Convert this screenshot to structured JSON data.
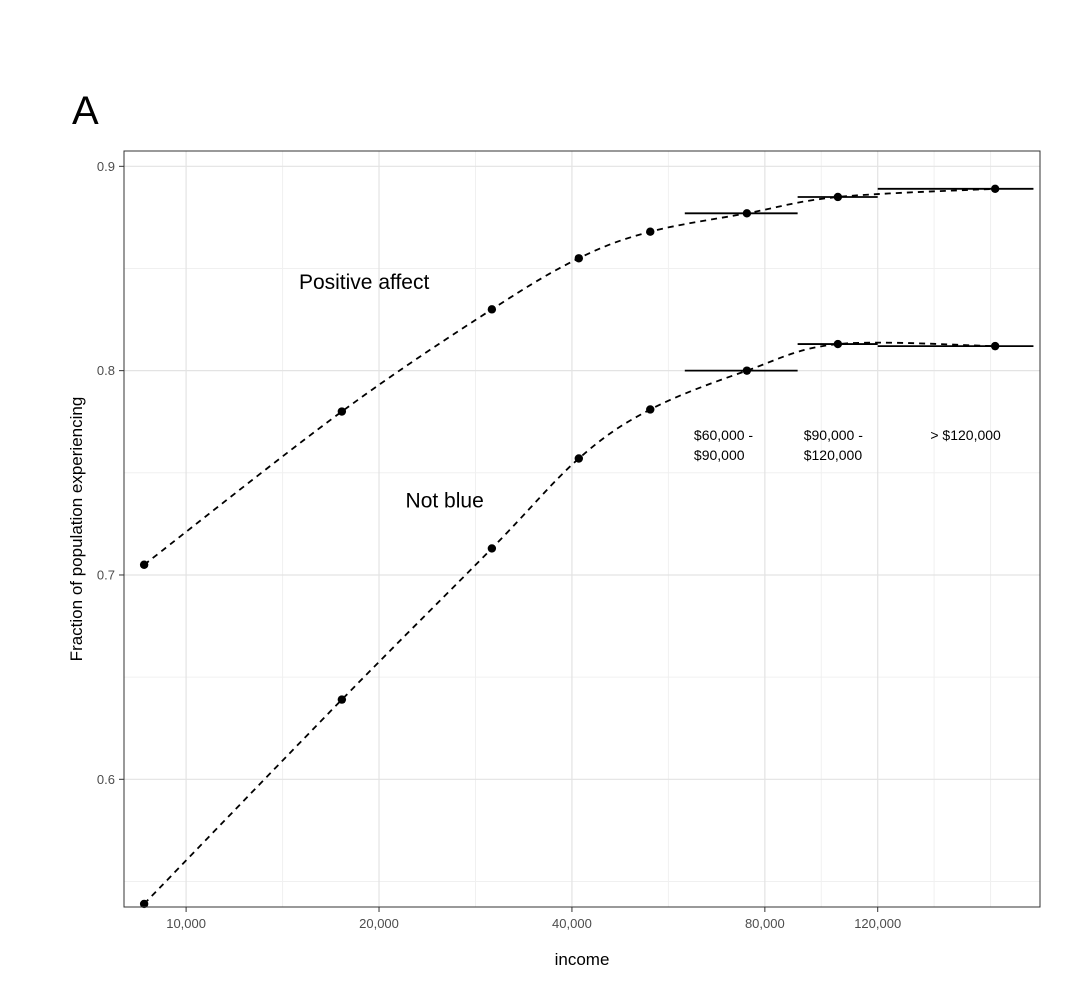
{
  "panel_label": "A",
  "chart_data": {
    "type": "line",
    "title": "",
    "xlabel": "income",
    "ylabel": "Fraction of population experiencing",
    "x_scale": "log",
    "xlim": [
      8000,
      215000
    ],
    "ylim": [
      0.5375,
      0.9075
    ],
    "grid": true,
    "x_ticks": [
      {
        "value": 10000,
        "label": "10,000"
      },
      {
        "value": 20000,
        "label": "20,000"
      },
      {
        "value": 40000,
        "label": "40,000"
      },
      {
        "value": 80000,
        "label": "80,000"
      },
      {
        "value": 120000,
        "label": "120,000"
      }
    ],
    "y_ticks": [
      {
        "value": 0.6,
        "label": "0.6"
      },
      {
        "value": 0.7,
        "label": "0.7"
      },
      {
        "value": 0.8,
        "label": "0.8"
      },
      {
        "value": 0.9,
        "label": "0.9"
      }
    ],
    "series": [
      {
        "name": "Positive affect",
        "x": [
          8600,
          17500,
          30000,
          41000,
          53000,
          75000,
          104000,
          183000
        ],
        "y": [
          0.705,
          0.78,
          0.83,
          0.855,
          0.868,
          0.877,
          0.885,
          0.889
        ]
      },
      {
        "name": "Not blue",
        "x": [
          8600,
          17500,
          30000,
          41000,
          53000,
          75000,
          104000,
          183000
        ],
        "y": [
          0.539,
          0.639,
          0.713,
          0.757,
          0.781,
          0.8,
          0.813,
          0.812
        ]
      }
    ],
    "bracket_segments": [
      {
        "series": "Positive affect",
        "x_from": 60000,
        "x_to": 90000,
        "y": 0.877
      },
      {
        "series": "Positive affect",
        "x_from": 90000,
        "x_to": 120000,
        "y": 0.885
      },
      {
        "series": "Positive affect",
        "x_from": 120000,
        "x_to": 210000,
        "y": 0.889
      },
      {
        "series": "Not blue",
        "x_from": 60000,
        "x_to": 90000,
        "y": 0.8
      },
      {
        "series": "Not blue",
        "x_from": 90000,
        "x_to": 120000,
        "y": 0.813
      },
      {
        "series": "Not blue",
        "x_from": 120000,
        "x_to": 210000,
        "y": 0.812
      }
    ],
    "annotations": [
      {
        "id": "positive-affect-label",
        "lines": [
          "Positive affect"
        ],
        "x": 15000,
        "y": 0.84
      },
      {
        "id": "not-blue-label",
        "lines": [
          "Not blue"
        ],
        "x": 22000,
        "y": 0.733
      },
      {
        "id": "bracket-60-90-label",
        "lines": [
          "$60,000 -",
          "$90,000"
        ],
        "x": 62000,
        "y": 0.766
      },
      {
        "id": "bracket-90-120-label",
        "lines": [
          "$90,000 -",
          "$120,000"
        ],
        "x": 92000,
        "y": 0.766
      },
      {
        "id": "bracket-120-plus-label",
        "lines": [
          "> $120,000"
        ],
        "x": 145000,
        "y": 0.766
      }
    ]
  }
}
